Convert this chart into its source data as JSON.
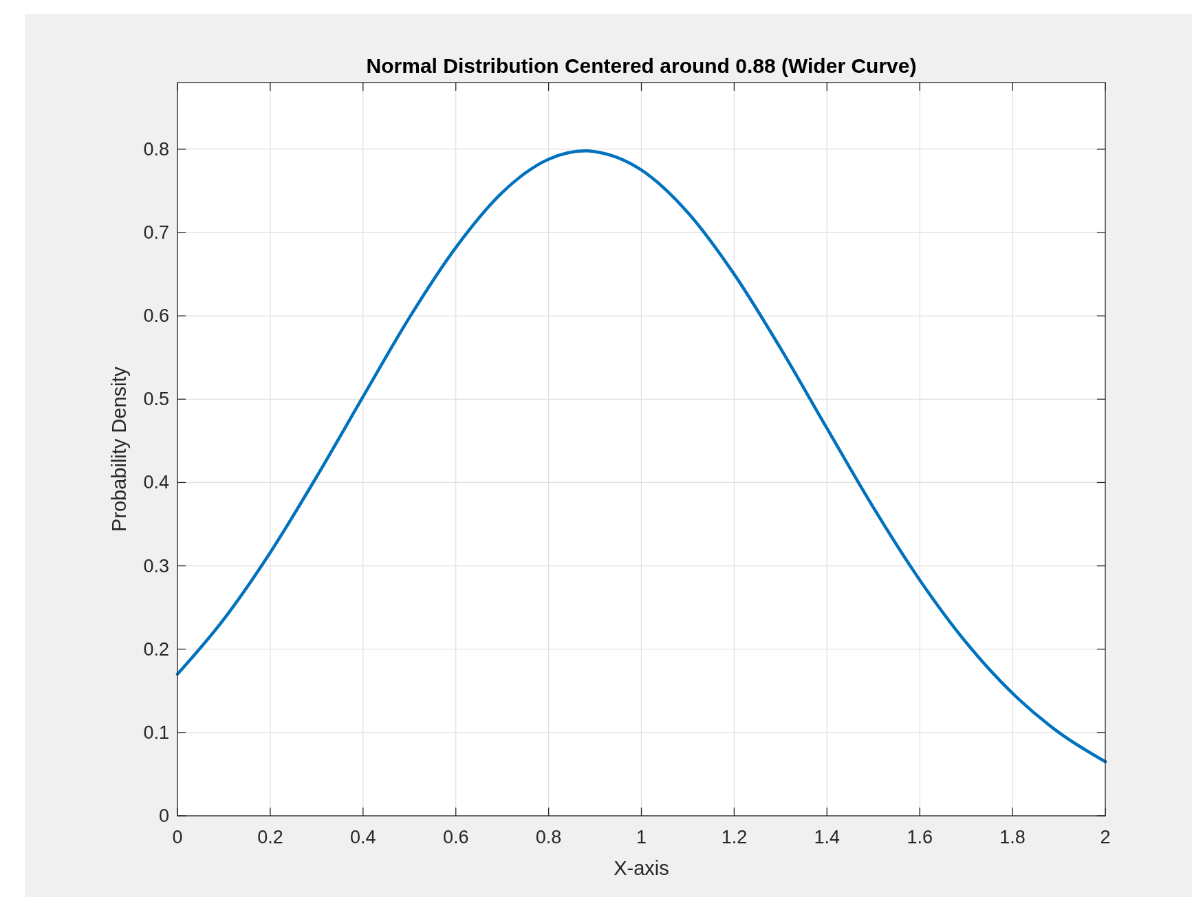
{
  "chart_data": {
    "type": "line",
    "title": "Normal Distribution Centered around 0.88 (Wider Curve)",
    "xlabel": "X-axis",
    "ylabel": "Probability Density",
    "x": [
      0,
      0.1,
      0.2,
      0.3,
      0.4,
      0.5,
      0.6,
      0.7,
      0.8,
      0.88,
      0.9,
      1.0,
      1.1,
      1.2,
      1.3,
      1.4,
      1.5,
      1.6,
      1.7,
      1.8,
      1.9,
      2.0
    ],
    "series": [
      {
        "color": "#0072bd",
        "values": [
          0.17,
          0.236,
          0.316,
          0.407,
          0.503,
          0.598,
          0.682,
          0.748,
          0.788,
          0.798,
          0.797,
          0.775,
          0.724,
          0.65,
          0.561,
          0.465,
          0.37,
          0.283,
          0.208,
          0.147,
          0.1,
          0.065
        ]
      }
    ],
    "xlim": [
      0,
      2
    ],
    "ylim": [
      0,
      0.88
    ],
    "xticks": [
      0,
      0.2,
      0.4,
      0.6,
      0.8,
      1,
      1.2,
      1.4,
      1.6,
      1.8,
      2
    ],
    "yticks": [
      0,
      0.1,
      0.2,
      0.3,
      0.4,
      0.5,
      0.6,
      0.7,
      0.8
    ],
    "grid": true,
    "marker": "none",
    "line_style": "solid"
  }
}
